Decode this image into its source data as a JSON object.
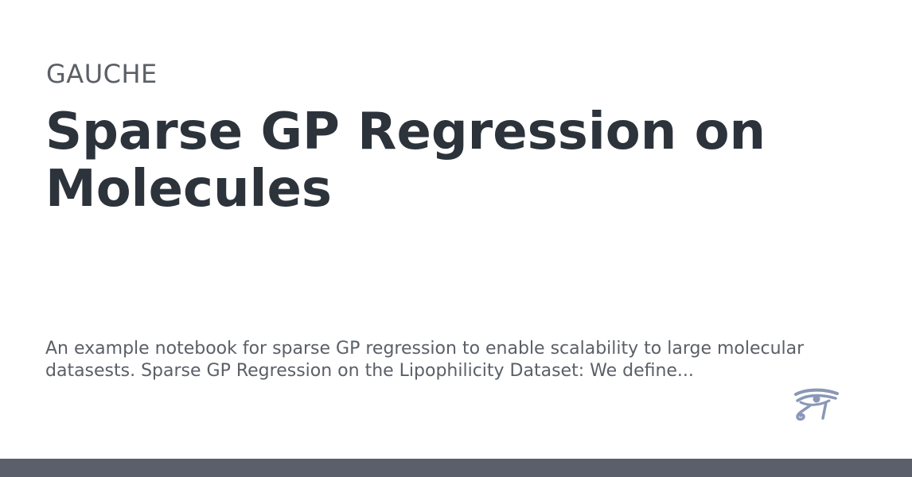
{
  "site": {
    "name": "GAUCHE"
  },
  "page": {
    "title": "Sparse GP Regression on Molecules",
    "description": "An example notebook for sparse GP regression to enable scalability to large molecular datasests. Sparse GP Regression on the Lipophilicity Dataset: We define..."
  },
  "logo": {
    "icon": "eye-of-horus-icon",
    "color": "#8a97b5"
  },
  "colors": {
    "title": "#2d333b",
    "text": "#5b5f66",
    "footer_bar": "#5b5f6b",
    "background": "#ffffff"
  }
}
